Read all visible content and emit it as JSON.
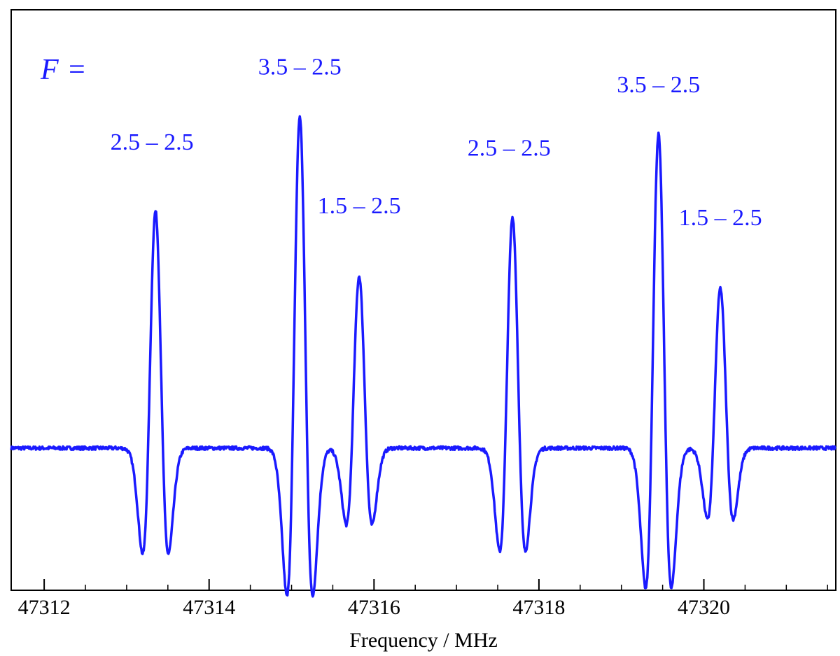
{
  "chart_data": {
    "type": "line",
    "title": "",
    "xlabel": "Frequency / MHz",
    "ylabel": "",
    "xlim": [
      47311.6,
      47321.6
    ],
    "ylim": [
      -1.2,
      3.7
    ],
    "x_ticks": [
      47312,
      47314,
      47316,
      47318,
      47320
    ],
    "x_tick_labels": [
      "47312",
      "47314",
      "47316",
      "47318",
      "47320"
    ],
    "grid": false,
    "legend": "none",
    "line_color": "#1a1aff",
    "baseline": 0,
    "series": [
      {
        "peaks": [
          {
            "x": 47313.35,
            "amplitude": 2.0,
            "label": "2.5 – 2.5"
          },
          {
            "x": 47315.1,
            "amplitude": 2.8,
            "label": "3.5 – 2.5"
          },
          {
            "x": 47315.82,
            "amplitude": 1.45,
            "label": "1.5 – 2.5"
          },
          {
            "x": 47317.68,
            "amplitude": 1.95,
            "label": "2.5 – 2.5"
          },
          {
            "x": 47319.45,
            "amplitude": 2.65,
            "label": "3.5 – 2.5"
          },
          {
            "x": 47320.2,
            "amplitude": 1.35,
            "label": "1.5 – 2.5"
          }
        ]
      }
    ],
    "annotation_prefix": {
      "symbol": "F",
      "eq": "="
    }
  }
}
